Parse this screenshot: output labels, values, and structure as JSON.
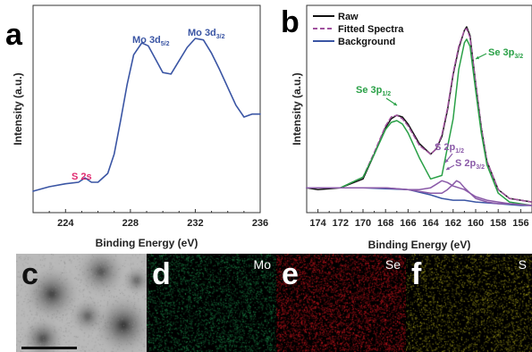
{
  "panels": {
    "a": "a",
    "b": "b",
    "c": "c",
    "d": "d",
    "e": "e",
    "f": "f"
  },
  "maps": {
    "d_label": "Mo",
    "e_label": "Se",
    "f_label": "S",
    "d_color": "#1c8a4a",
    "e_color": "#d0161f",
    "f_color": "#a8a21a"
  },
  "chart_data": [
    {
      "type": "line",
      "panel": "a",
      "xlabel": "Binding Energy (eV)",
      "ylabel": "Intensity (a.u.)",
      "xlim": [
        222,
        236
      ],
      "x_reversed": false,
      "xticks": [
        224,
        228,
        232,
        236
      ],
      "series": [
        {
          "color": "#3a55a4",
          "x": [
            222.0,
            223.0,
            224.0,
            224.8,
            225.2,
            225.6,
            226.0,
            226.6,
            227.0,
            227.4,
            227.8,
            228.2,
            228.7,
            229.1,
            229.5,
            230.0,
            230.5,
            231.0,
            231.5,
            232.0,
            232.5,
            233.0,
            233.5,
            234.0,
            234.5,
            235.0,
            235.5,
            236.0
          ],
          "y": [
            0.0,
            0.03,
            0.05,
            0.06,
            0.09,
            0.06,
            0.06,
            0.12,
            0.25,
            0.48,
            0.72,
            0.92,
            1.0,
            0.98,
            0.9,
            0.8,
            0.79,
            0.88,
            0.97,
            1.03,
            1.02,
            0.93,
            0.82,
            0.7,
            0.58,
            0.5,
            0.52,
            0.52
          ]
        }
      ],
      "annotations": [
        {
          "text": "Mo 3d",
          "sub": "5/2",
          "color": "#3a55a4",
          "x": 228.7,
          "y": 1.0
        },
        {
          "text": "Mo 3d",
          "sub": "3/2",
          "color": "#3a55a4",
          "x": 232.0,
          "y": 1.03
        },
        {
          "text": "S 2s",
          "sub": "",
          "color": "#e0296f",
          "x": 225.2,
          "y": 0.09
        }
      ]
    },
    {
      "type": "line",
      "panel": "b",
      "xlabel": "Binding Energy (eV)",
      "ylabel": "Intensity (a.u.)",
      "xlim": [
        175,
        155
      ],
      "x_reversed": true,
      "xticks": [
        174,
        172,
        170,
        168,
        166,
        164,
        162,
        160,
        158,
        156
      ],
      "legend_position": "top-left",
      "series": [
        {
          "name": "Raw",
          "color": "#111111",
          "dash": "solid",
          "x": [
            175,
            174,
            172,
            170,
            169,
            168,
            167.5,
            167,
            166.5,
            166,
            165,
            164,
            163.5,
            163,
            162.5,
            162,
            161.5,
            161,
            160.8,
            160.5,
            160,
            159.5,
            159,
            158,
            157,
            156,
            155
          ],
          "y": [
            0.11,
            0.1,
            0.11,
            0.16,
            0.3,
            0.45,
            0.5,
            0.52,
            0.51,
            0.47,
            0.36,
            0.3,
            0.33,
            0.4,
            0.55,
            0.75,
            0.9,
            1.0,
            1.02,
            0.97,
            0.7,
            0.45,
            0.26,
            0.1,
            0.05,
            0.04,
            0.03
          ]
        },
        {
          "name": "Fitted Spectra",
          "color": "#a0529e",
          "dash": "dashed",
          "x": [
            175,
            174,
            172,
            170,
            169,
            168,
            167.5,
            167,
            166.5,
            166,
            165,
            164,
            163.5,
            163,
            162.5,
            162,
            161.5,
            161,
            160.8,
            160.5,
            160,
            159.5,
            159,
            158,
            157,
            156,
            155
          ],
          "y": [
            0.11,
            0.11,
            0.11,
            0.17,
            0.31,
            0.46,
            0.51,
            0.52,
            0.5,
            0.46,
            0.35,
            0.3,
            0.33,
            0.41,
            0.56,
            0.76,
            0.91,
            1.0,
            1.01,
            0.96,
            0.7,
            0.45,
            0.26,
            0.1,
            0.05,
            0.04,
            0.03
          ]
        },
        {
          "name": "Background",
          "color": "#3a55a4",
          "dash": "solid",
          "x": [
            175,
            170,
            166,
            164,
            163,
            162,
            161,
            160,
            158,
            156,
            155
          ],
          "y": [
            0.11,
            0.11,
            0.1,
            0.07,
            0.05,
            0.04,
            0.04,
            0.03,
            0.02,
            0.01,
            0.01
          ]
        },
        {
          "name": "",
          "color": "#29a046",
          "dash": "solid",
          "x": [
            175,
            172,
            170,
            169,
            168,
            167.5,
            167,
            166.5,
            166,
            165,
            164,
            163,
            162,
            161.5,
            161,
            160.8,
            160.5,
            160,
            159.5,
            159,
            158,
            157,
            155
          ],
          "y": [
            0.11,
            0.11,
            0.17,
            0.3,
            0.44,
            0.48,
            0.49,
            0.47,
            0.42,
            0.28,
            0.16,
            0.18,
            0.5,
            0.78,
            0.93,
            0.95,
            0.91,
            0.66,
            0.42,
            0.24,
            0.08,
            0.03,
            0.01
          ]
        },
        {
          "name": "",
          "color": "#8a5aa8",
          "dash": "solid",
          "x": [
            175,
            168,
            166,
            165,
            164,
            163.5,
            163,
            162.5,
            162,
            161.5,
            161,
            160.5,
            160,
            159,
            158,
            157,
            155
          ],
          "y": [
            0.11,
            0.11,
            0.1,
            0.1,
            0.11,
            0.13,
            0.15,
            0.14,
            0.12,
            0.11,
            0.1,
            0.08,
            0.06,
            0.04,
            0.03,
            0.02,
            0.01
          ]
        },
        {
          "name": "",
          "color": "#8a5aa8",
          "dash": "solid",
          "x": [
            175,
            168,
            166,
            164,
            163,
            162.5,
            162,
            161.7,
            161.4,
            161,
            160.5,
            160,
            159.5,
            159,
            158,
            157,
            155
          ],
          "y": [
            0.11,
            0.11,
            0.1,
            0.08,
            0.08,
            0.1,
            0.13,
            0.15,
            0.14,
            0.11,
            0.08,
            0.05,
            0.04,
            0.03,
            0.02,
            0.02,
            0.01
          ]
        }
      ],
      "annotations": [
        {
          "text": "Se 3p",
          "sub": "3/2",
          "color": "#29a046"
        },
        {
          "text": "Se 3p",
          "sub": "1/2",
          "color": "#29a046"
        },
        {
          "text": "S 2p",
          "sub": "1/2",
          "color": "#8a5aa8"
        },
        {
          "text": "S 2p",
          "sub": "3/2",
          "color": "#8a5aa8"
        }
      ]
    }
  ]
}
